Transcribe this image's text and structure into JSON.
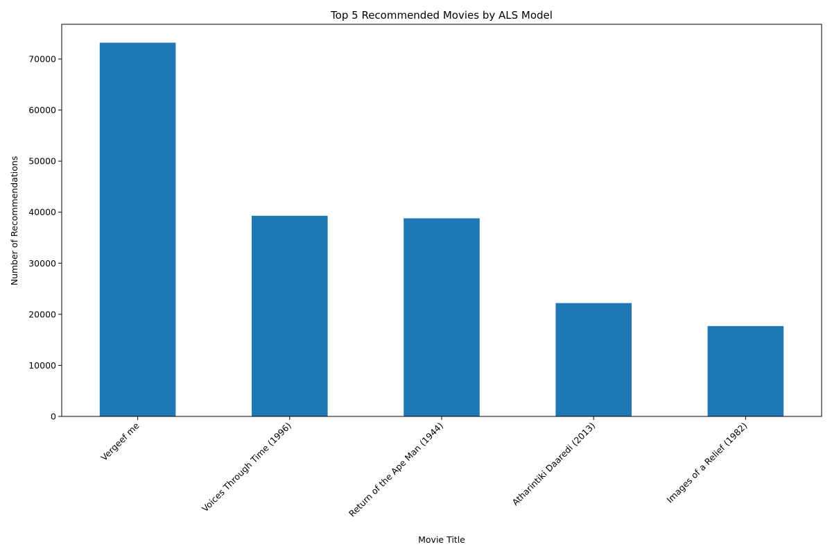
{
  "chart_data": {
    "type": "bar",
    "title": "Top 5 Recommended Movies by ALS Model",
    "xlabel": "Movie Title",
    "ylabel": "Number of Recommendations",
    "categories": [
      "Vergeef me",
      "Voices Through Time (1996)",
      "Return of the Ape Man (1944)",
      "Atharintiki Daaredi (2013)",
      "Images of a Relief (1982)"
    ],
    "values": [
      73200,
      39300,
      38800,
      22200,
      17700
    ],
    "ylim": [
      0,
      76800
    ],
    "yticks": [
      0,
      10000,
      20000,
      30000,
      40000,
      50000,
      60000,
      70000
    ],
    "bar_color": "#1f77b4",
    "grid": false,
    "legend": "none"
  }
}
